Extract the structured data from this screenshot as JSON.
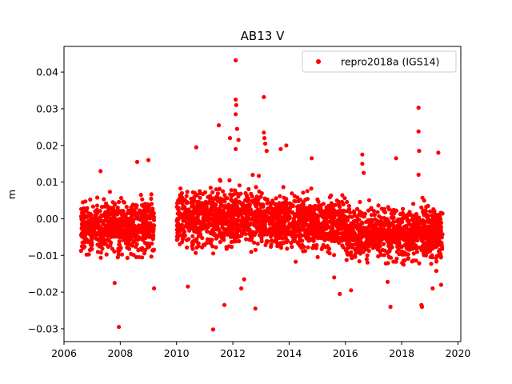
{
  "chart_data": {
    "type": "scatter",
    "title": "AB13 V",
    "xlabel": "",
    "ylabel": "m",
    "xlim": [
      2006.0,
      2020.1
    ],
    "ylim": [
      -0.0335,
      0.047
    ],
    "xticks": [
      2006,
      2008,
      2010,
      2012,
      2014,
      2016,
      2018,
      2020
    ],
    "xtick_labels": [
      "2006",
      "2008",
      "2010",
      "2012",
      "2014",
      "2016",
      "2018",
      "2020"
    ],
    "yticks": [
      -0.03,
      -0.02,
      -0.01,
      0.0,
      0.01,
      0.02,
      0.03,
      0.04
    ],
    "ytick_labels": [
      "−0.03",
      "−0.02",
      "−0.01",
      "0.00",
      "0.01",
      "0.02",
      "0.03",
      "0.04"
    ],
    "grid": false,
    "legend_position": "top-right",
    "series": [
      {
        "name": "repro2018a (IGS14)",
        "color": "#ff0000",
        "marker": "circle",
        "segments": [
          {
            "x_start": 2006.6,
            "x_end": 2009.2,
            "center": -0.002,
            "spread": 0.0075
          },
          {
            "x_start": 2010.0,
            "x_end": 2013.0,
            "center": 0.0005,
            "spread": 0.0085
          },
          {
            "x_start": 2013.0,
            "x_end": 2016.0,
            "center": -0.001,
            "spread": 0.0075
          },
          {
            "x_start": 2016.0,
            "x_end": 2019.45,
            "center": -0.004,
            "spread": 0.0075
          }
        ],
        "outliers": [
          {
            "x": 2007.95,
            "y": -0.0295
          },
          {
            "x": 2007.8,
            "y": -0.0175
          },
          {
            "x": 2009.2,
            "y": -0.019
          },
          {
            "x": 2008.6,
            "y": 0.0155
          },
          {
            "x": 2009.0,
            "y": 0.016
          },
          {
            "x": 2007.3,
            "y": 0.013
          },
          {
            "x": 2010.4,
            "y": -0.0185
          },
          {
            "x": 2010.7,
            "y": 0.0195
          },
          {
            "x": 2011.3,
            "y": -0.0302
          },
          {
            "x": 2011.7,
            "y": -0.0235
          },
          {
            "x": 2011.5,
            "y": 0.0255
          },
          {
            "x": 2011.9,
            "y": 0.022
          },
          {
            "x": 2012.1,
            "y": 0.0432
          },
          {
            "x": 2012.1,
            "y": 0.0325
          },
          {
            "x": 2012.12,
            "y": 0.031
          },
          {
            "x": 2012.1,
            "y": 0.0285
          },
          {
            "x": 2012.15,
            "y": 0.0245
          },
          {
            "x": 2012.2,
            "y": 0.0215
          },
          {
            "x": 2012.1,
            "y": 0.019
          },
          {
            "x": 2012.3,
            "y": -0.019
          },
          {
            "x": 2012.4,
            "y": -0.0165
          },
          {
            "x": 2012.8,
            "y": -0.0245
          },
          {
            "x": 2013.1,
            "y": 0.0332
          },
          {
            "x": 2013.1,
            "y": 0.0235
          },
          {
            "x": 2013.12,
            "y": 0.022
          },
          {
            "x": 2013.15,
            "y": 0.0205
          },
          {
            "x": 2013.2,
            "y": 0.0185
          },
          {
            "x": 2013.7,
            "y": 0.019
          },
          {
            "x": 2013.9,
            "y": 0.02
          },
          {
            "x": 2014.8,
            "y": 0.0165
          },
          {
            "x": 2015.6,
            "y": -0.016
          },
          {
            "x": 2015.8,
            "y": -0.0205
          },
          {
            "x": 2016.2,
            "y": -0.0195
          },
          {
            "x": 2016.6,
            "y": 0.0175
          },
          {
            "x": 2016.6,
            "y": 0.015
          },
          {
            "x": 2016.65,
            "y": 0.0125
          },
          {
            "x": 2017.5,
            "y": -0.0172
          },
          {
            "x": 2017.6,
            "y": -0.024
          },
          {
            "x": 2017.8,
            "y": 0.0165
          },
          {
            "x": 2018.6,
            "y": 0.0303
          },
          {
            "x": 2018.6,
            "y": 0.0238
          },
          {
            "x": 2018.62,
            "y": 0.0185
          },
          {
            "x": 2018.6,
            "y": 0.012
          },
          {
            "x": 2018.7,
            "y": -0.0235
          },
          {
            "x": 2018.72,
            "y": -0.024
          },
          {
            "x": 2019.1,
            "y": -0.019
          },
          {
            "x": 2019.3,
            "y": 0.018
          },
          {
            "x": 2019.4,
            "y": -0.018
          }
        ]
      }
    ]
  }
}
